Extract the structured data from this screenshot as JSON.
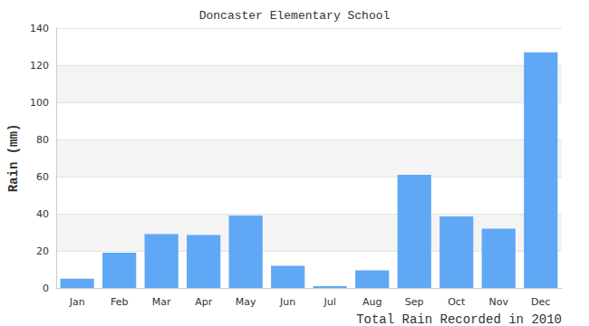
{
  "chart_data": {
    "type": "bar",
    "title": "Doncaster Elementary School",
    "x_label": "Total Rain Recorded in 2010",
    "y_label": "Rain (mm)",
    "categories": [
      "Jan",
      "Feb",
      "Mar",
      "Apr",
      "May",
      "Jun",
      "Jul",
      "Aug",
      "Sep",
      "Oct",
      "Nov",
      "Dec"
    ],
    "values": [
      5,
      19,
      29,
      28.5,
      39,
      12,
      1,
      9.5,
      61,
      38.5,
      32,
      127
    ],
    "color": "#60a8f5",
    "ylim": [
      0,
      140
    ],
    "yticks": [
      0,
      20,
      40,
      60,
      80,
      100,
      120,
      140
    ],
    "grid": true
  }
}
